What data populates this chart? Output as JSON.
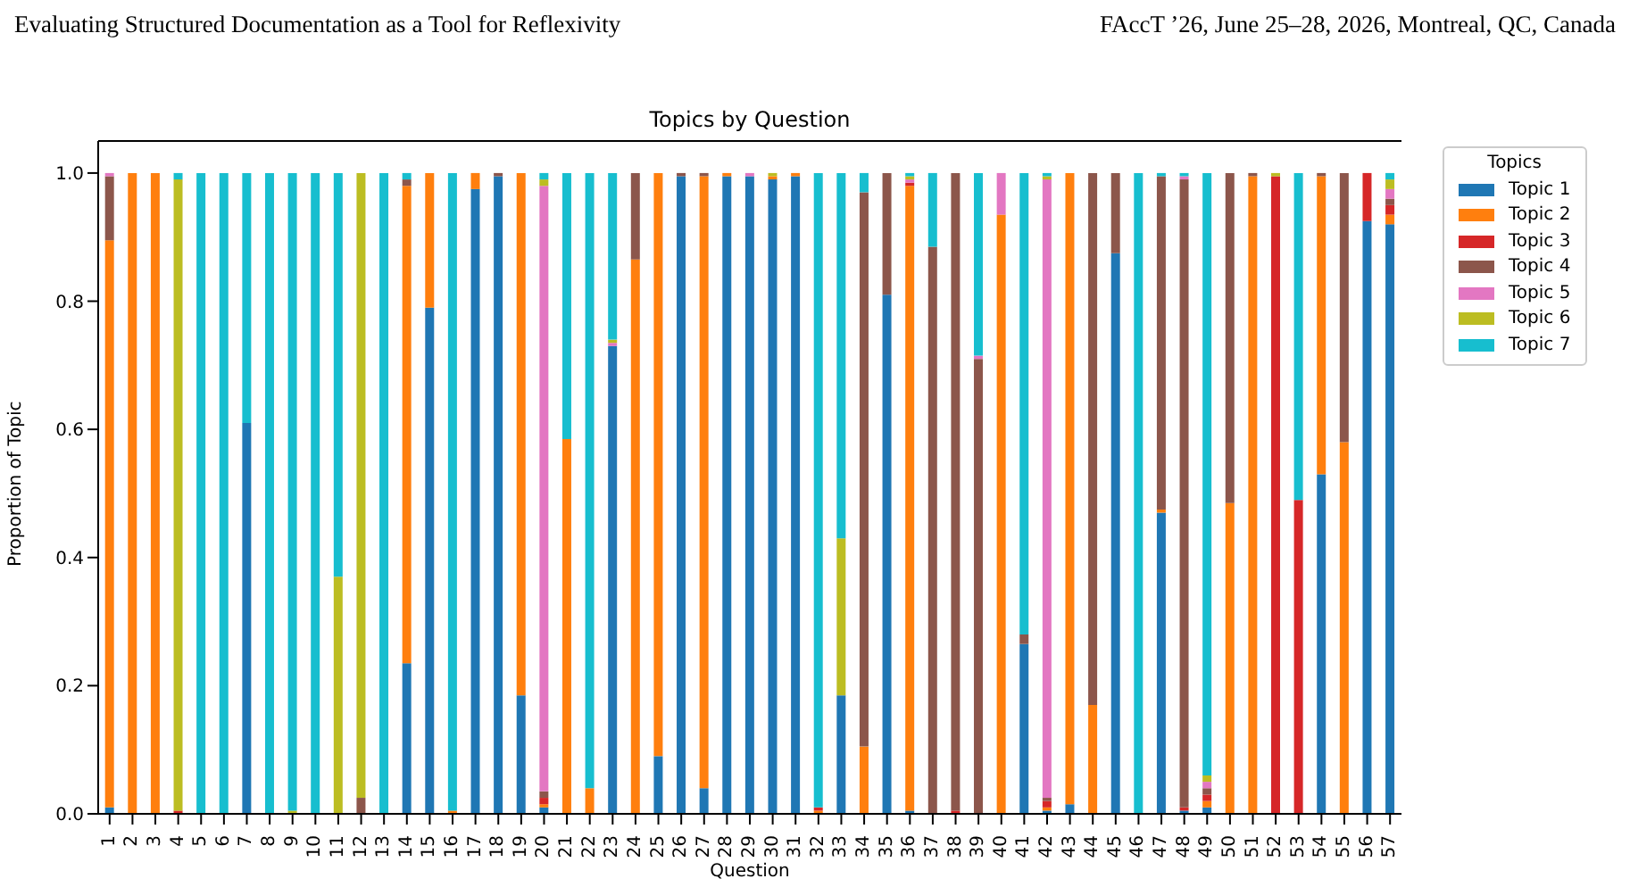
{
  "chart_data": {
    "type": "bar",
    "title": "Topics by Question",
    "xlabel": "Question",
    "ylabel": "Proportion of Topic",
    "legend_title": "Topics",
    "annotations": [
      "Evaluating Structured Documentation as a Tool for Reflexivity",
      "FAccT ’26, June 25–28, 2026, Montreal, QC, Canada"
    ],
    "categories": [
      "1",
      "2",
      "3",
      "4",
      "5",
      "6",
      "7",
      "8",
      "9",
      "10",
      "11",
      "12",
      "13",
      "14",
      "15",
      "16",
      "17",
      "18",
      "19",
      "20",
      "21",
      "22",
      "23",
      "24",
      "25",
      "26",
      "27",
      "28",
      "29",
      "30",
      "31",
      "32",
      "33",
      "34",
      "35",
      "36",
      "37",
      "38",
      "39",
      "40",
      "41",
      "42",
      "43",
      "44",
      "45",
      "46",
      "47",
      "48",
      "49",
      "50",
      "51",
      "52",
      "53",
      "54",
      "55",
      "56",
      "57"
    ],
    "stacked": true,
    "legend": "top right",
    "ylim": [
      0,
      1.05
    ],
    "yticks": [
      {
        "value": 0,
        "label": "0.0"
      },
      {
        "value": 0.2,
        "label": "0.2"
      },
      {
        "value": 0.4,
        "label": "0.4"
      },
      {
        "value": 0.6,
        "label": "0.6"
      },
      {
        "value": 0.8,
        "label": "0.8"
      },
      {
        "value": 1,
        "label": "1.0"
      }
    ],
    "series": [
      {
        "name": "Topic 1",
        "color": "#1f77b4",
        "values": [
          0.01,
          0,
          0,
          0,
          0,
          0,
          0.61,
          0,
          0,
          0,
          0,
          0,
          0,
          0.235,
          0.79,
          0,
          0.975,
          0.995,
          0.185,
          0.01,
          0,
          0,
          0.73,
          0,
          0.09,
          0.995,
          0.04,
          0.995,
          0.995,
          0.99,
          0.995,
          0,
          0.185,
          0,
          0.81,
          0.005,
          0,
          0,
          0,
          0,
          0.265,
          0.005,
          0.015,
          0,
          0.875,
          0,
          0.47,
          0.005,
          0.01,
          0,
          0,
          0,
          0,
          0.53,
          0,
          0.925,
          0.92
        ]
      },
      {
        "name": "Topic 2",
        "color": "#ff7f0e",
        "values": [
          0.885,
          1,
          1,
          0,
          0,
          0,
          0,
          0,
          0,
          0,
          0,
          0,
          0,
          0.745,
          0.21,
          0.005,
          0.025,
          0,
          0.815,
          0.005,
          0.585,
          0.04,
          0,
          0.865,
          0.91,
          0,
          0.955,
          0.005,
          0,
          0.005,
          0.005,
          0.005,
          0,
          0.105,
          0,
          0.975,
          0,
          0,
          0,
          0.935,
          0,
          0.005,
          0.985,
          0.17,
          0,
          0,
          0.005,
          0,
          0.01,
          0.485,
          0.995,
          0,
          0,
          0.465,
          0.58,
          0,
          0.015
        ]
      },
      {
        "name": "Topic 3",
        "color": "#d62728",
        "values": [
          0,
          0,
          0,
          0.005,
          0,
          0,
          0,
          0,
          0,
          0,
          0,
          0,
          0,
          0,
          0,
          0,
          0,
          0,
          0,
          0.01,
          0,
          0,
          0,
          0,
          0,
          0,
          0,
          0,
          0,
          0,
          0,
          0.005,
          0,
          0,
          0,
          0.005,
          0,
          0.005,
          0,
          0,
          0,
          0.01,
          0,
          0,
          0,
          0,
          0,
          0.005,
          0.01,
          0,
          0,
          0.995,
          0.49,
          0,
          0,
          0.075,
          0.015
        ]
      },
      {
        "name": "Topic 4",
        "color": "#8c564b",
        "values": [
          0.1,
          0,
          0,
          0,
          0,
          0,
          0,
          0,
          0,
          0,
          0,
          0.025,
          0,
          0.01,
          0,
          0,
          0,
          0.005,
          0,
          0.01,
          0,
          0,
          0,
          0.135,
          0,
          0.005,
          0.005,
          0,
          0,
          0,
          0,
          0,
          0,
          0.865,
          0.19,
          0,
          0.885,
          0.995,
          0.71,
          0,
          0.015,
          0.005,
          0,
          0.83,
          0.125,
          0,
          0.52,
          0.98,
          0.01,
          0.515,
          0.005,
          0,
          0,
          0.005,
          0.42,
          0,
          0.01
        ]
      },
      {
        "name": "Topic 5",
        "color": "#e377c2",
        "values": [
          0.005,
          0,
          0,
          0,
          0,
          0,
          0,
          0,
          0,
          0,
          0,
          0,
          0,
          0,
          0,
          0,
          0,
          0,
          0,
          0.945,
          0,
          0,
          0.005,
          0,
          0,
          0,
          0,
          0,
          0.005,
          0,
          0,
          0,
          0,
          0,
          0,
          0.005,
          0,
          0,
          0.005,
          0.065,
          0,
          0.965,
          0,
          0,
          0,
          0,
          0,
          0.005,
          0.01,
          0,
          0,
          0,
          0,
          0,
          0,
          0,
          0.015
        ]
      },
      {
        "name": "Topic 6",
        "color": "#bcbd22",
        "values": [
          0,
          0,
          0,
          0.985,
          0,
          0,
          0,
          0,
          0.005,
          0,
          0.37,
          0.975,
          0,
          0,
          0,
          0,
          0,
          0,
          0,
          0.01,
          0,
          0,
          0.005,
          0,
          0,
          0,
          0,
          0,
          0,
          0.005,
          0,
          0,
          0.245,
          0,
          0,
          0.005,
          0,
          0,
          0,
          0,
          0,
          0.005,
          0,
          0,
          0,
          0,
          0,
          0,
          0.01,
          0,
          0,
          0.005,
          0,
          0,
          0,
          0,
          0.015
        ]
      },
      {
        "name": "Topic 7",
        "color": "#17becf",
        "values": [
          0,
          0,
          0,
          0.01,
          1,
          1,
          0.39,
          1,
          0.995,
          1,
          0.63,
          0,
          1,
          0.01,
          0,
          0.995,
          0,
          0,
          0,
          0.01,
          0.415,
          0.96,
          0.26,
          0,
          0,
          0,
          0,
          0,
          0,
          0,
          0,
          0.99,
          0.57,
          0.03,
          0,
          0.005,
          0.115,
          0,
          0.285,
          0,
          0.72,
          0.005,
          0,
          0,
          0,
          1,
          0.005,
          0.005,
          0.94,
          0,
          0,
          0,
          0.51,
          0,
          0,
          0,
          0.01
        ]
      }
    ]
  }
}
